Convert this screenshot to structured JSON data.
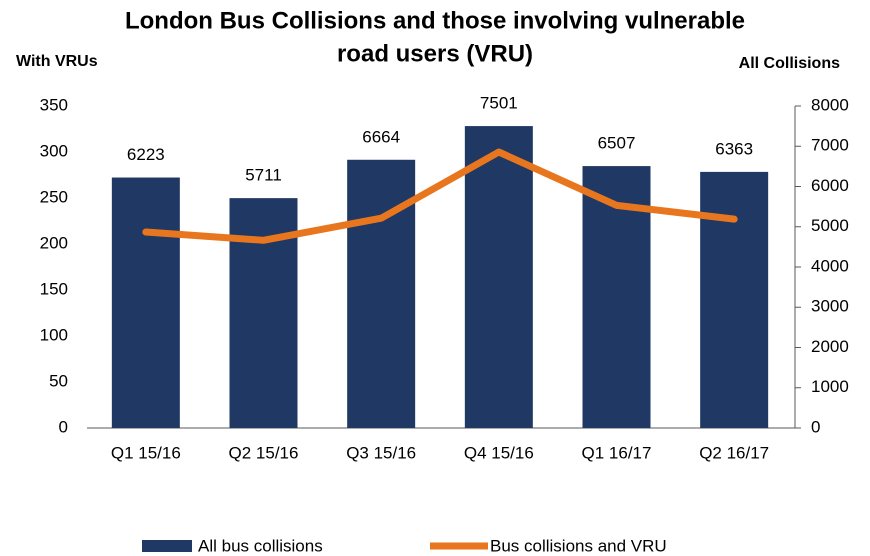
{
  "chart_data": {
    "type": "bar_line",
    "title": [
      "London Bus Collisions and those involving vulnerable",
      "road users (VRU)"
    ],
    "y_axis_label": "With VRUs",
    "y2_axis_label": "All Collisions",
    "categories": [
      "Q1 15/16",
      "Q2 15/16",
      "Q3 15/16",
      "Q4 15/16",
      "Q1 16/17",
      "Q2 16/17"
    ],
    "series": [
      {
        "name": "All bus collisions",
        "type": "bar",
        "axis": "y2",
        "color": "#1f3864",
        "values": [
          6223,
          5711,
          6664,
          7501,
          6507,
          6363
        ],
        "data_labels": true
      },
      {
        "name": "Bus collisions and VRU",
        "type": "line",
        "axis": "y",
        "color": "#e8761e",
        "values": [
          213,
          204,
          228,
          300,
          242,
          227
        ]
      }
    ],
    "ylim": [
      0,
      350
    ],
    "yticks": [
      0,
      50,
      100,
      150,
      200,
      250,
      300,
      350
    ],
    "y2lim": [
      0,
      8000
    ],
    "y2ticks": [
      0,
      1000,
      2000,
      3000,
      4000,
      5000,
      6000,
      7000,
      8000
    ],
    "legend": "bottom"
  }
}
